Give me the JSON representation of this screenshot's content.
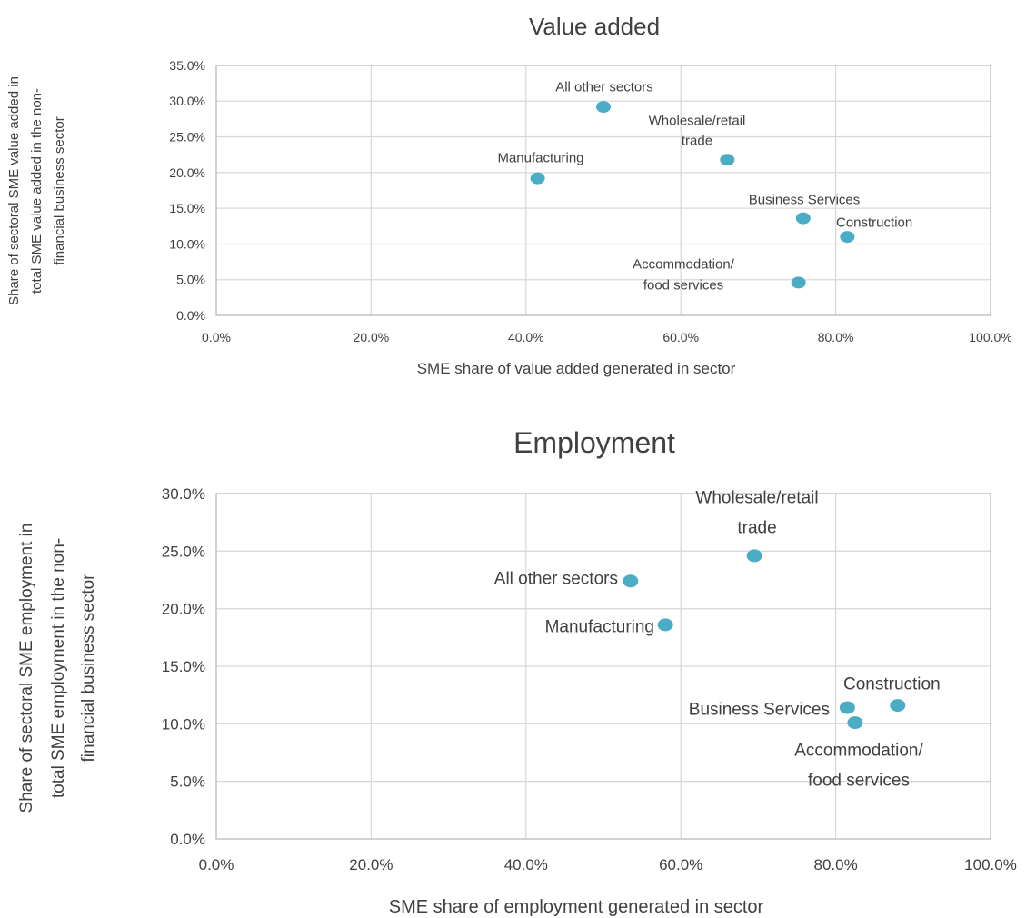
{
  "chart_data": [
    {
      "type": "scatter",
      "title": "Value added",
      "xlabel": "SME share of value added generated in sector",
      "ylabel_lines": [
        "Share of sectoral SME value added in",
        "total SME value added in the non-",
        "financial business sector"
      ],
      "xlim": [
        0,
        100
      ],
      "ylim": [
        0,
        35
      ],
      "x_ticks": [
        "0.0%",
        "20.0%",
        "40.0%",
        "60.0%",
        "80.0%",
        "100.0%"
      ],
      "y_ticks": [
        "0.0%",
        "5.0%",
        "10.0%",
        "15.0%",
        "20.0%",
        "25.0%",
        "30.0%",
        "35.0%"
      ],
      "grid": true,
      "points": [
        {
          "label_lines": [
            "All other sectors"
          ],
          "x": 50.0,
          "y": 29.2
        },
        {
          "label_lines": [
            "Wholesale/retail",
            "trade"
          ],
          "x": 66.0,
          "y": 21.8
        },
        {
          "label_lines": [
            "Manufacturing"
          ],
          "x": 41.5,
          "y": 19.2
        },
        {
          "label_lines": [
            "Business Services"
          ],
          "x": 75.8,
          "y": 13.6
        },
        {
          "label_lines": [
            "Construction"
          ],
          "x": 81.5,
          "y": 11.0
        },
        {
          "label_lines": [
            "Accommodation/",
            "food services"
          ],
          "x": 75.2,
          "y": 4.6
        }
      ]
    },
    {
      "type": "scatter",
      "title": "Employment",
      "xlabel": "SME share of employment generated in sector",
      "ylabel_lines": [
        "Share of sectoral SME employment in",
        "total SME employment in the non-",
        "financial business sector"
      ],
      "xlim": [
        0,
        100
      ],
      "ylim": [
        0,
        30
      ],
      "x_ticks": [
        "0.0%",
        "20.0%",
        "40.0%",
        "60.0%",
        "80.0%",
        "100.0%"
      ],
      "y_ticks": [
        "0.0%",
        "5.0%",
        "10.0%",
        "15.0%",
        "20.0%",
        "25.0%",
        "30.0%"
      ],
      "grid": true,
      "points": [
        {
          "label_lines": [
            "Wholesale/retail",
            "trade"
          ],
          "x": 69.5,
          "y": 24.6
        },
        {
          "label_lines": [
            "All other sectors"
          ],
          "x": 53.5,
          "y": 22.4
        },
        {
          "label_lines": [
            "Manufacturing"
          ],
          "x": 58.0,
          "y": 18.6
        },
        {
          "label_lines": [
            "Construction"
          ],
          "x": 88.0,
          "y": 11.6
        },
        {
          "label_lines": [
            "Business Services"
          ],
          "x": 81.5,
          "y": 11.4
        },
        {
          "label_lines": [
            "Accommodation/",
            "food services"
          ],
          "x": 82.5,
          "y": 10.1
        }
      ]
    }
  ]
}
